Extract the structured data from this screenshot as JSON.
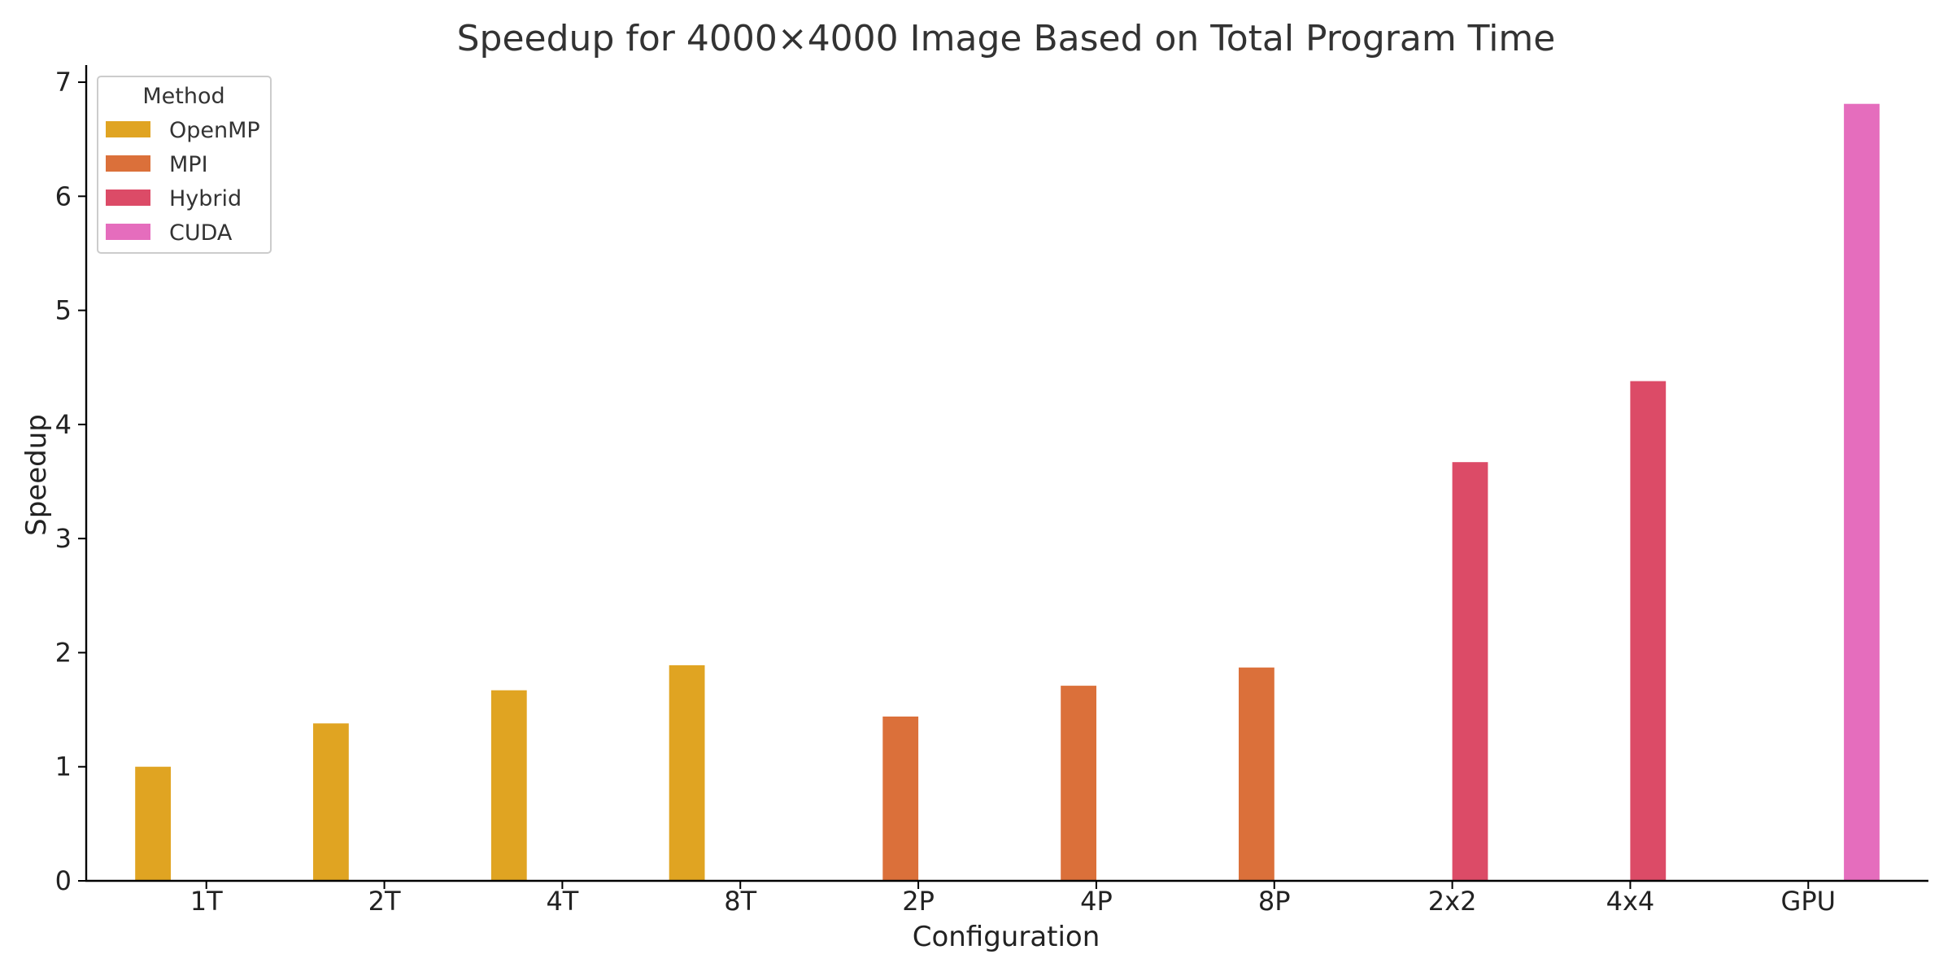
{
  "chart_data": {
    "type": "bar",
    "title": "Speedup for 4000×4000 Image Based on Total Program Time",
    "xlabel": "Configuration",
    "ylabel": "Speedup",
    "ylim": [
      0,
      7.15
    ],
    "yticks": [
      0,
      1,
      2,
      3,
      4,
      5,
      6,
      7
    ],
    "grid": false,
    "legend": {
      "title": "Method",
      "placement": "top-left"
    },
    "categories": [
      "1T",
      "2T",
      "4T",
      "8T",
      "2P",
      "4P",
      "8P",
      "2x2",
      "4x4",
      "GPU"
    ],
    "series": [
      {
        "name": "OpenMP",
        "color": "#E0A422",
        "values": [
          1.0,
          1.38,
          1.67,
          1.89,
          null,
          null,
          null,
          null,
          null,
          null
        ]
      },
      {
        "name": "MPI",
        "color": "#DB703A",
        "values": [
          null,
          null,
          null,
          null,
          1.44,
          1.71,
          1.87,
          null,
          null,
          null
        ]
      },
      {
        "name": "Hybrid",
        "color": "#DC4B67",
        "values": [
          null,
          null,
          null,
          null,
          null,
          null,
          null,
          3.67,
          4.38,
          null
        ]
      },
      {
        "name": "CUDA",
        "color": "#E56DBD",
        "values": [
          null,
          null,
          null,
          null,
          null,
          null,
          null,
          null,
          null,
          6.81
        ]
      }
    ]
  }
}
